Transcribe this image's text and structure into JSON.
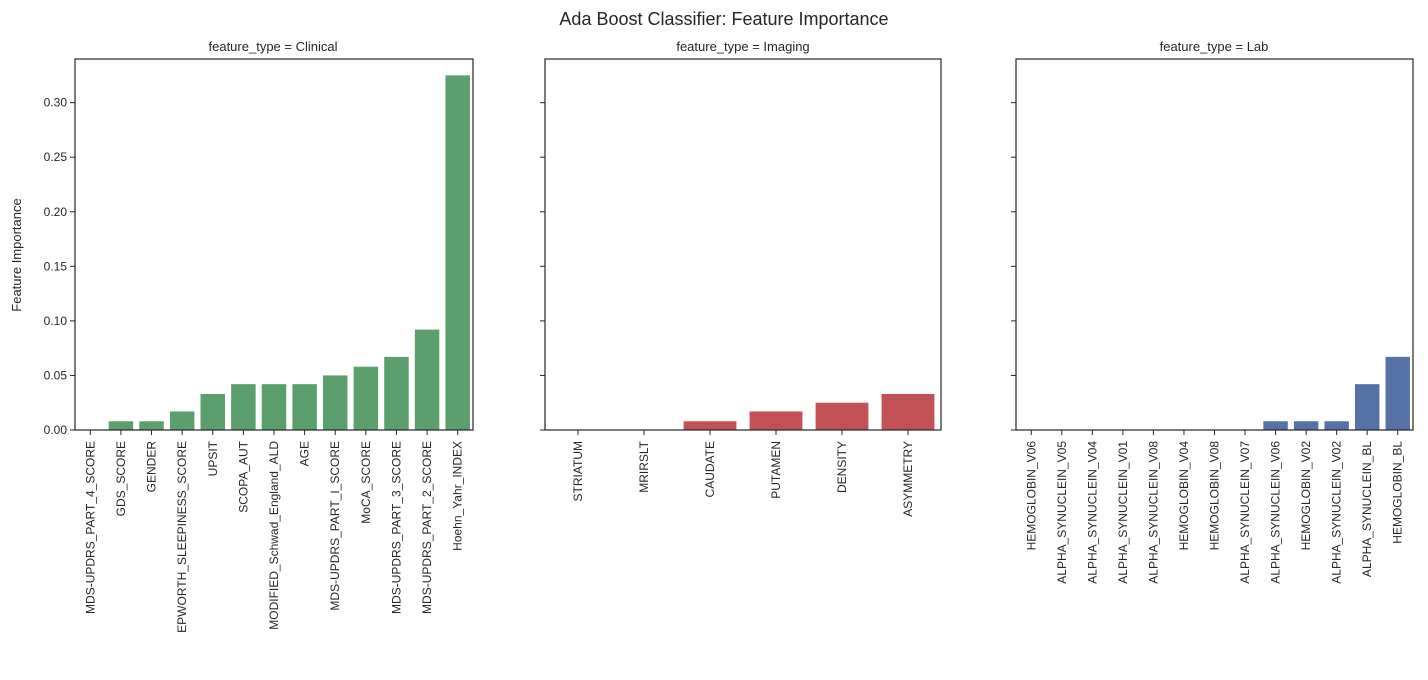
{
  "figure": {
    "title": "Ada Boost Classifier: Feature Importance"
  },
  "chart_data": {
    "type": "bar",
    "title": "Ada Boost Classifier: Feature Importance",
    "ylabel": "Feature Importance",
    "ylim": [
      0,
      0.34
    ],
    "yticks": [
      "0.00",
      "0.05",
      "0.10",
      "0.15",
      "0.20",
      "0.25",
      "0.30"
    ],
    "shared_y": true,
    "grid": false,
    "panels": [
      {
        "title": "feature_type = Clinical",
        "color": "#5b9f6c",
        "categories": [
          "MDS-UPDRS_PART_4_SCORE",
          "GDS_SCORE",
          "GENDER",
          "EPWORTH_SLEEPINESS_SCORE",
          "UPSIT",
          "SCOPA_AUT",
          "MODIFIED_Schwad_England_ALD",
          "AGE",
          "MDS-UPDRS_PART_I_SCORE",
          "MoCA_SCORE",
          "MDS-UPDRS_PART_3_SCORE",
          "MDS-UPDRS_PART_2_SCORE",
          "Hoehn_Yahr_INDEX"
        ],
        "values": [
          0.0,
          0.008,
          0.008,
          0.017,
          0.033,
          0.042,
          0.042,
          0.042,
          0.05,
          0.058,
          0.067,
          0.092,
          0.325
        ]
      },
      {
        "title": "feature_type = Imaging",
        "color": "#c15155",
        "categories": [
          "STRIATUM",
          "MRIRSLT",
          "CAUDATE",
          "PUTAMEN",
          "DENSITY",
          "ASYMMETRY"
        ],
        "values": [
          0.0,
          0.0,
          0.008,
          0.017,
          0.025,
          0.033
        ]
      },
      {
        "title": "feature_type = Lab",
        "color": "#5571a5",
        "categories": [
          "HEMOGLOBIN_V06",
          "ALPHA_SYNUCLEIN_V05",
          "ALPHA_SYNUCLEIN_V04",
          "ALPHA_SYNUCLEIN_V01",
          "ALPHA_SYNUCLEIN_V08",
          "HEMOGLOBIN_V04",
          "HEMOGLOBIN_V08",
          "ALPHA_SYNUCLEIN_V07",
          "ALPHA_SYNUCLEIN_V06",
          "HEMOGLOBIN_V02",
          "ALPHA_SYNUCLEIN_V02",
          "ALPHA_SYNUCLEIN_BL",
          "HEMOGLOBIN_BL"
        ],
        "values": [
          0.0,
          0.0,
          0.0,
          0.0,
          0.0,
          0.0,
          0.0,
          0.0,
          0.008,
          0.008,
          0.008,
          0.042,
          0.067
        ]
      }
    ]
  }
}
